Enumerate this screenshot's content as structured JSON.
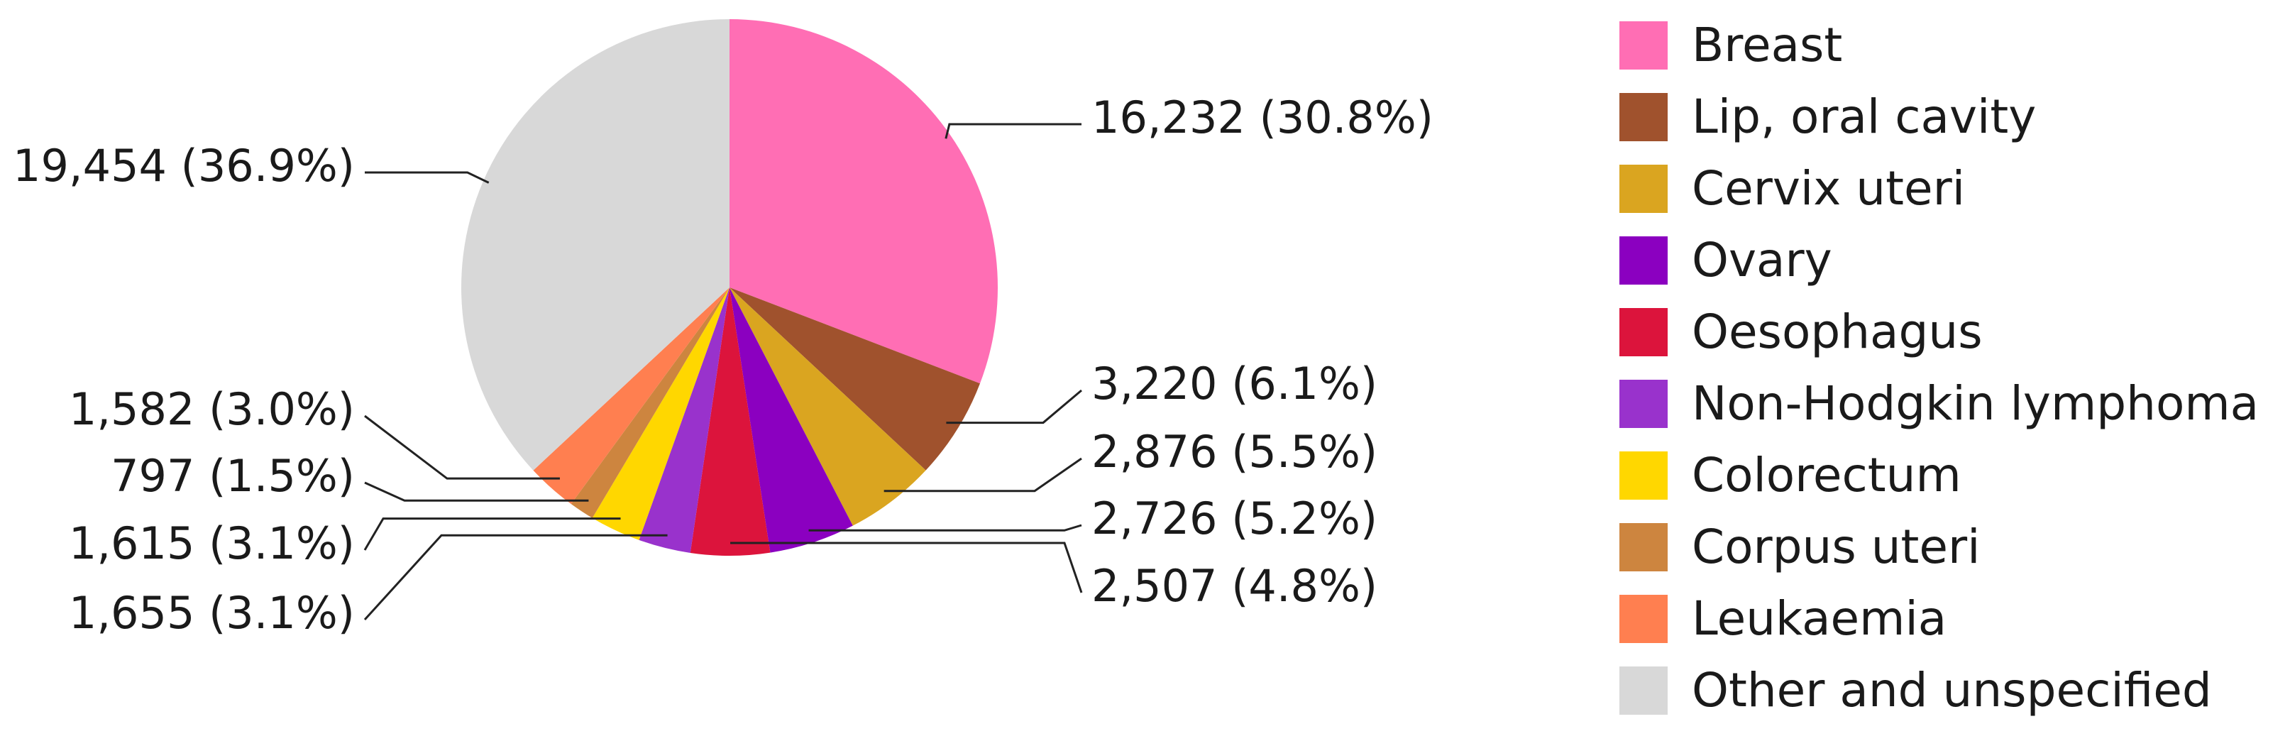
{
  "chart_data": {
    "type": "pie",
    "slices": [
      {
        "label": "Breast",
        "value": 16232,
        "percent": "30.8%",
        "color": "#ff6eb4"
      },
      {
        "label": "Lip, oral cavity",
        "value": 3220,
        "percent": "6.1%",
        "color": "#a0522d"
      },
      {
        "label": "Cervix uteri",
        "value": 2876,
        "percent": "5.5%",
        "color": "#daa520"
      },
      {
        "label": "Ovary",
        "value": 2726,
        "percent": "5.2%",
        "color": "#8b00c0"
      },
      {
        "label": "Oesophagus",
        "value": 2507,
        "percent": "4.8%",
        "color": "#dc143c"
      },
      {
        "label": "Non-Hodgkin lymphoma",
        "value": 1655,
        "percent": "3.1%",
        "color": "#9932cc"
      },
      {
        "label": "Colorectum",
        "value": 1615,
        "percent": "3.1%",
        "color": "#ffd700"
      },
      {
        "label": "Corpus uteri",
        "value": 797,
        "percent": "1.5%",
        "color": "#cd853f"
      },
      {
        "label": "Leukaemia",
        "value": 1582,
        "percent": "3.0%",
        "color": "#ff7f50"
      },
      {
        "label": "Other and unspecified",
        "value": 19454,
        "percent": "36.9%",
        "color": "#d8d8d8"
      }
    ],
    "data_labels": [
      "16,232 (30.8%)",
      "3,220 (6.1%)",
      "2,876 (5.5%)",
      "2,726 (5.2%)",
      "2,507 (4.8%)",
      "1,655 (3.1%)",
      "1,615 (3.1%)",
      "797 (1.5%)",
      "1,582 (3.0%)",
      "19,454 (36.9%)"
    ],
    "start_angle": "12 o'clock",
    "direction": "clockwise",
    "legend": {
      "position": "right",
      "entries": [
        "Breast",
        "Lip, oral cavity",
        "Cervix uteri",
        "Ovary",
        "Oesophagus",
        "Non-Hodgkin lymphoma",
        "Colorectum",
        "Corpus uteri",
        "Leukaemia",
        "Other and unspecified"
      ]
    }
  }
}
